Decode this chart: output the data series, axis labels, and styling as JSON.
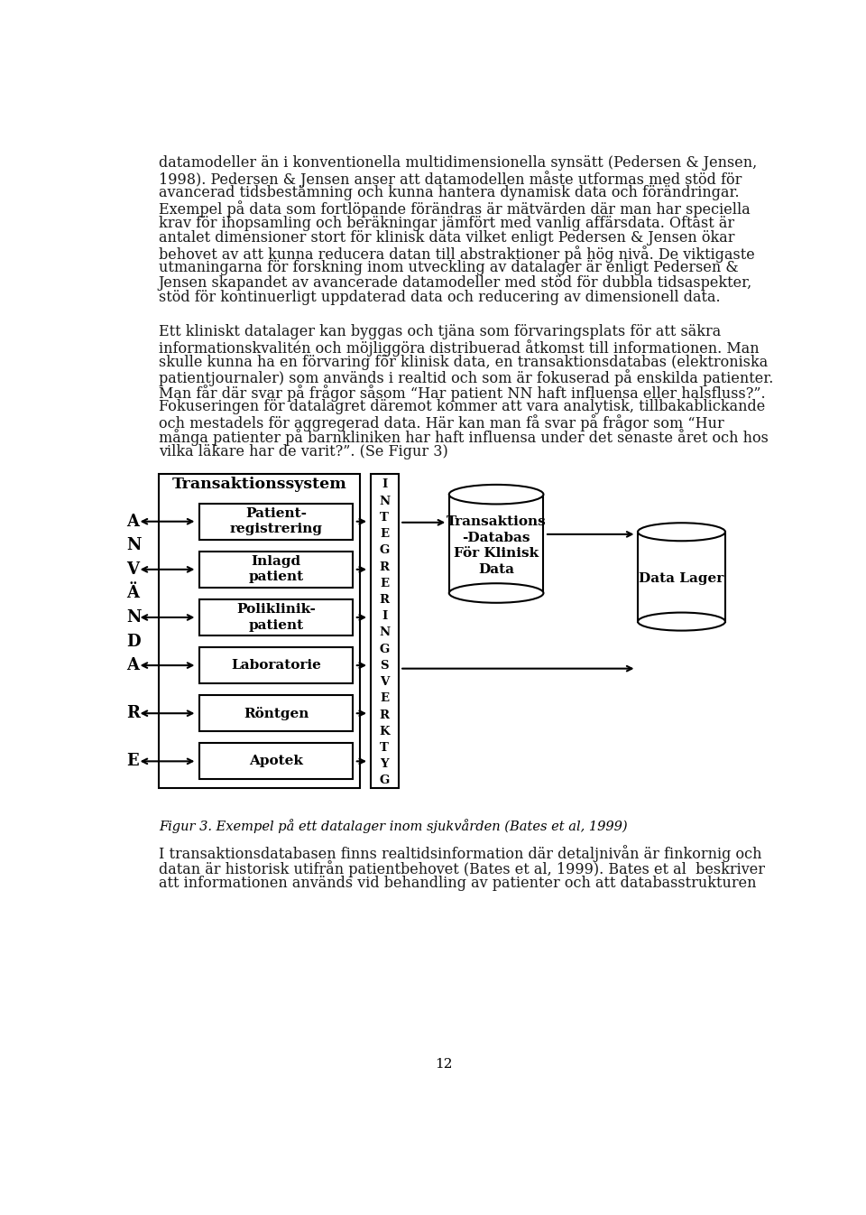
{
  "background_color": "#ffffff",
  "page_number": "12",
  "paragraph1": "datamodeller än i konventionella multidimensionella synsätt (Pedersen & Jensen,\n1998). Pedersen & Jensen anser att datamodellen måste utformas med stöd för\navancerad tidsbestämning och kunna hantera dynamisk data och förändringar.\nExempel på data som fortlöpande förändras är mätvärden där man har speciella\nkrav för ihopsamling och beräkningar jämfört med vanlig affärsdata. Oftast är\nantalet dimensioner stort för klinisk data vilket enligt Pedersen & Jensen ökar\nbehovet av att kunna reducera datan till abstraktioner på hög nivå. De viktigaste\nutmaningarna för forskning inom utveckling av datalager är enligt Pedersen &\nJensen skapandet av avancerade datamodeller med stöd för dubbla tidsaspekter,\nstöd för kontinuerligt uppdaterad data och reducering av dimensionell data.",
  "paragraph2": "Ett kliniskt datalager kan byggas och tjäna som förvaringsplats för att säkra\ninformationskvalitén och möjliggöra distribuerad åtkomst till informationen. Man\nskulle kunna ha en förvaring för klinisk data, en transaktionsdatabas (elektroniska\npatientjournaler) som används i realtid och som är fokuserad på enskilda patienter.\nMan får där svar på frågor såsom “Har patient NN haft influensa eller halsfluss?”.\nFokuseringen för datalagret däremot kommer att vara analytisk, tillbakablickande\noch mestadels för aggregerad data. Här kan man få svar på frågor som “Hur\nmånga patienter på barnkliniken har haft influensa under det senaste året och hos\nvilka läkare har de varit?”. (Se Figur 3)",
  "figure_caption": "Figur 3. Exempel på ett datalager inom sjukvården (Bates et al, 1999)",
  "paragraph3": "I transaktionsdatabasen finns realtidsinformation där detaljnivån är finkornig och\ndatan är historisk utifrån patientbehovet (Bates et al, 1999). Bates et al  beskriver\natt informationen används vid behandling av patienter och att databasstrukturen",
  "box_labels": [
    "Patient-\nregistrering",
    "Inlagd\npatient",
    "Poliklinik-\npatient",
    "Laboratorie",
    "Röntgen",
    "Apotek"
  ],
  "transaktionssystem_label": "Transaktionssystem",
  "integrering_letters": [
    "I",
    "N",
    "T",
    "E",
    "G",
    "R",
    "E",
    "R",
    "I",
    "N",
    "G",
    "S",
    "V",
    "E",
    "R",
    "K",
    "T",
    "Y",
    "G"
  ],
  "db_label": "Transaktions\n-Databas\nFör Klinisk\nData",
  "datalager_label": "Data Lager",
  "text_fontsize": 11.5,
  "body_text_color": "#1a1a1a"
}
